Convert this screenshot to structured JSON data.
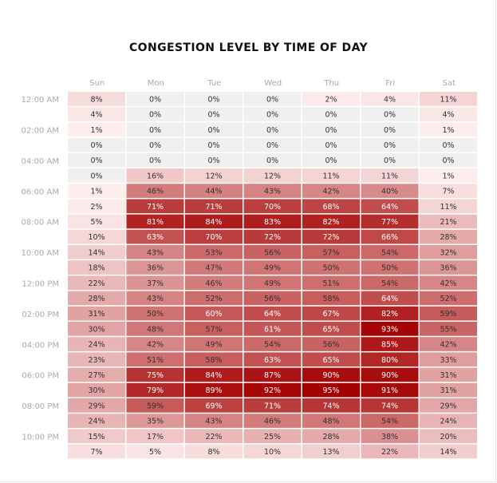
{
  "chart_data": {
    "type": "heatmap",
    "title": "CONGESTION LEVEL BY TIME OF DAY",
    "columns": [
      "Sun",
      "Mon",
      "Tue",
      "Wed",
      "Thu",
      "Fri",
      "Sat"
    ],
    "row_labels": [
      "12:00 AM",
      "",
      "02:00 AM",
      "",
      "04:00 AM",
      "",
      "06:00 AM",
      "",
      "08:00 AM",
      "",
      "10:00 AM",
      "",
      "12:00 PM",
      "",
      "02:00 PM",
      "",
      "04:00 PM",
      "",
      "06:00 PM",
      "",
      "08:00 PM",
      "",
      "10:00 PM",
      ""
    ],
    "unit": "%",
    "values": [
      [
        8,
        0,
        0,
        0,
        2,
        4,
        11
      ],
      [
        4,
        0,
        0,
        0,
        0,
        0,
        4
      ],
      [
        1,
        0,
        0,
        0,
        0,
        0,
        1
      ],
      [
        0,
        0,
        0,
        0,
        0,
        0,
        0
      ],
      [
        0,
        0,
        0,
        0,
        0,
        0,
        0
      ],
      [
        0,
        16,
        12,
        12,
        11,
        11,
        1
      ],
      [
        1,
        46,
        44,
        43,
        42,
        40,
        7
      ],
      [
        2,
        71,
        71,
        70,
        68,
        64,
        11
      ],
      [
        5,
        81,
        84,
        83,
        82,
        77,
        21
      ],
      [
        10,
        63,
        70,
        72,
        72,
        66,
        28
      ],
      [
        14,
        43,
        53,
        56,
        57,
        54,
        32
      ],
      [
        18,
        36,
        47,
        49,
        50,
        50,
        36
      ],
      [
        22,
        37,
        46,
        49,
        51,
        54,
        42
      ],
      [
        28,
        43,
        52,
        56,
        58,
        64,
        52
      ],
      [
        31,
        50,
        60,
        64,
        67,
        82,
        59
      ],
      [
        30,
        48,
        57,
        61,
        65,
        93,
        55
      ],
      [
        24,
        42,
        49,
        54,
        56,
        85,
        42
      ],
      [
        23,
        51,
        58,
        63,
        65,
        80,
        33
      ],
      [
        27,
        75,
        84,
        87,
        90,
        90,
        31
      ],
      [
        30,
        79,
        89,
        92,
        95,
        91,
        31
      ],
      [
        29,
        59,
        69,
        71,
        74,
        74,
        29
      ],
      [
        24,
        35,
        43,
        46,
        48,
        54,
        24
      ],
      [
        15,
        17,
        22,
        25,
        28,
        38,
        20
      ],
      [
        7,
        5,
        8,
        10,
        13,
        22,
        14
      ]
    ],
    "color_scale": {
      "zero": "#f0f0f0",
      "low": "#fff0f0",
      "high": "#a30000"
    }
  }
}
